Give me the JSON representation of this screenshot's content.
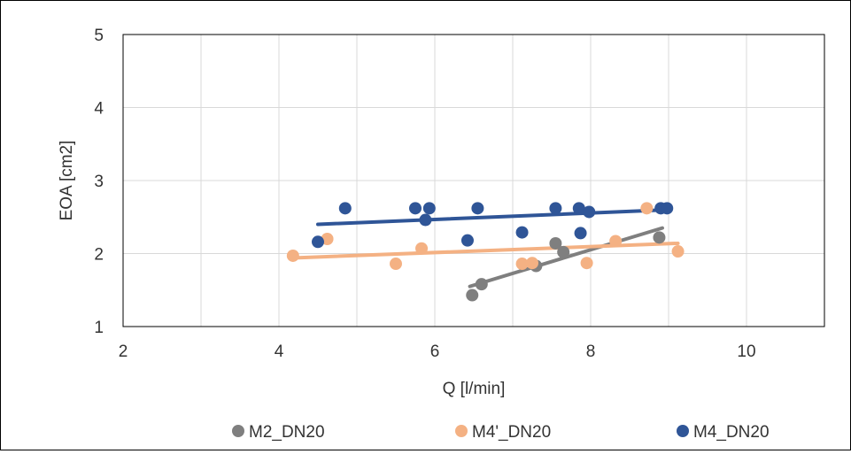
{
  "chart_data": {
    "type": "scatter",
    "title": "",
    "xlabel": "Q [l/min]",
    "ylabel": "EOA [cm2]",
    "xlim": [
      2,
      11
    ],
    "ylim": [
      1,
      5
    ],
    "xticks": [
      "2",
      "4",
      "6",
      "8",
      "10"
    ],
    "yticks": [
      "1",
      "2",
      "3",
      "4",
      "5"
    ],
    "grid": true,
    "legend_position": "bottom",
    "series": [
      {
        "name": "M2_DN20",
        "color": "#7f7f7f",
        "points": [
          [
            6.48,
            1.43
          ],
          [
            6.6,
            1.58
          ],
          [
            7.3,
            1.83
          ],
          [
            7.55,
            2.14
          ],
          [
            7.65,
            2.02
          ],
          [
            8.88,
            2.22
          ]
        ],
        "trendline": [
          [
            6.45,
            1.55
          ],
          [
            8.92,
            2.35
          ]
        ]
      },
      {
        "name": "M4'_DN20",
        "color": "#f4b183",
        "points": [
          [
            4.18,
            1.97
          ],
          [
            4.62,
            2.2
          ],
          [
            5.5,
            1.86
          ],
          [
            5.83,
            2.07
          ],
          [
            7.12,
            1.86
          ],
          [
            7.25,
            1.87
          ],
          [
            7.95,
            1.87
          ],
          [
            8.32,
            2.17
          ],
          [
            8.72,
            2.62
          ],
          [
            9.12,
            2.03
          ]
        ],
        "trendline": [
          [
            4.18,
            1.94
          ],
          [
            9.12,
            2.14
          ]
        ]
      },
      {
        "name": "M4_DN20",
        "color": "#2f5597",
        "points": [
          [
            4.5,
            2.16
          ],
          [
            4.85,
            2.62
          ],
          [
            5.75,
            2.62
          ],
          [
            5.88,
            2.46
          ],
          [
            5.93,
            2.62
          ],
          [
            6.42,
            2.18
          ],
          [
            6.55,
            2.62
          ],
          [
            7.12,
            2.29
          ],
          [
            7.55,
            2.62
          ],
          [
            7.85,
            2.62
          ],
          [
            7.87,
            2.28
          ],
          [
            7.98,
            2.57
          ],
          [
            8.9,
            2.62
          ],
          [
            8.98,
            2.62
          ]
        ],
        "trendline": [
          [
            4.5,
            2.4
          ],
          [
            9.0,
            2.6
          ]
        ]
      }
    ]
  }
}
